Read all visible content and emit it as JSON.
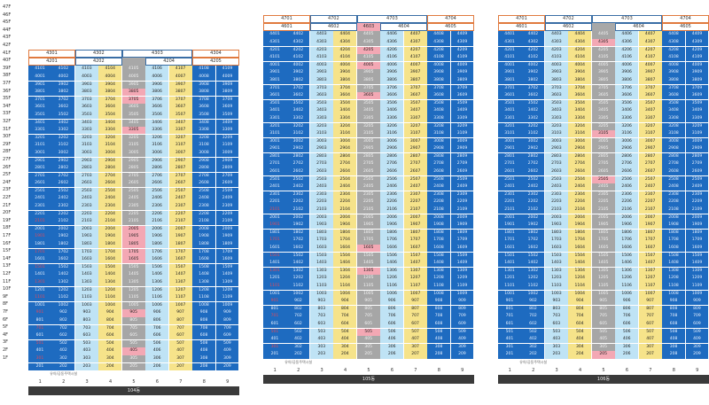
{
  "floors": [
    "47F",
    "46F",
    "45F",
    "44F",
    "43F",
    "42F",
    "41F",
    "40F",
    "39F",
    "38F",
    "37F",
    "36F",
    "35F",
    "34F",
    "33F",
    "32F",
    "31F",
    "30F",
    "29F",
    "28F",
    "27F",
    "26F",
    "25F",
    "24F",
    "23F",
    "22F",
    "21F",
    "20F",
    "19F",
    "18F",
    "17F",
    "16F",
    "15F",
    "14F",
    "13F",
    "12F",
    "11F",
    "10F",
    "9F",
    "8F",
    "7F",
    "6F",
    "5F",
    "4F",
    "3F",
    "2F",
    "1F"
  ],
  "colors": {
    "blue": "#1e6bc0",
    "light": "#bfe3f5",
    "yellow": "#f6e38a",
    "grey": "#a6a6a6",
    "pink": "#f3a8b4",
    "dark": "#0c4f9e",
    "tab_orange": "#e07a3f",
    "tab_blue": "#3a6ea5",
    "footer": "#3a3a3a"
  },
  "charts": [
    {
      "top_floor": 43,
      "top_tabs": [
        {
          "label": "4301",
          "style": "orange",
          "span": 2
        },
        {
          "label": "4302",
          "style": "blue",
          "span": 2
        },
        {
          "label": "4303",
          "style": "blue",
          "span": 3
        },
        {
          "label": "4304",
          "style": "orange",
          "span": 2
        }
      ],
      "second_tabs": [
        {
          "label": "4201",
          "style": "orange",
          "span": 2
        },
        {
          "label": "4202",
          "style": "blue",
          "span": 2
        },
        {
          "label": "",
          "style": "grey",
          "span": 1
        },
        {
          "label": "4204",
          "style": "blue",
          "span": 2
        },
        {
          "label": "4205",
          "style": "orange",
          "span": 2
        }
      ],
      "pattern": [
        "blue",
        "blue",
        "light",
        "yellow",
        "grey",
        "light",
        "yellow",
        "blue",
        "blue"
      ],
      "pink": [
        "3805",
        "3705",
        "3305",
        "2005",
        "1905",
        "1805",
        "1705",
        "1605",
        "905",
        "405"
      ],
      "bottom_label": "유아/공동주택시설",
      "cols": [
        "1",
        "2",
        "3",
        "4",
        "5",
        "6",
        "7",
        "8",
        "9"
      ],
      "footer": "104동"
    },
    {
      "top_floor": 46,
      "top_tabs": [
        {
          "label": "4701",
          "style": "orange",
          "span": 2
        },
        {
          "label": "4702",
          "style": "blue",
          "span": 2
        },
        {
          "label": "4703",
          "style": "blue",
          "span": 3
        },
        {
          "label": "4704",
          "style": "orange",
          "span": 2
        }
      ],
      "second_tabs": [
        {
          "label": "4601",
          "style": "orange",
          "span": 2
        },
        {
          "label": "4602",
          "style": "blue",
          "span": 2
        },
        {
          "label": "4603",
          "style": "pinktab",
          "span": 1
        },
        {
          "label": "4604",
          "style": "blue",
          "span": 2
        },
        {
          "label": "4605",
          "style": "orange",
          "span": 2
        }
      ],
      "pattern": [
        "blue",
        "blue",
        "light",
        "yellow",
        "grey",
        "light",
        "yellow",
        "blue",
        "blue"
      ],
      "pink": [
        "4205",
        "4005",
        "3605",
        "1605",
        "1305",
        "505"
      ],
      "bottom_label": "유아/공동주택시설",
      "cols": [
        "1",
        "2",
        "3",
        "4",
        "5",
        "6",
        "7",
        "8",
        "9"
      ],
      "footer": "105동"
    },
    {
      "top_floor": 46,
      "top_tabs": [
        {
          "label": "4701",
          "style": "orange",
          "span": 2
        },
        {
          "label": "4702",
          "style": "blue",
          "span": 2
        },
        {
          "label": "4703",
          "style": "blue",
          "span": 3
        },
        {
          "label": "4704",
          "style": "orange",
          "span": 2
        }
      ],
      "second_tabs": [
        {
          "label": "4601",
          "style": "orange",
          "span": 2
        },
        {
          "label": "4602",
          "style": "blue",
          "span": 2
        },
        {
          "label": "",
          "style": "grey",
          "span": 1
        },
        {
          "label": "4604",
          "style": "blue",
          "span": 2
        },
        {
          "label": "4605",
          "style": "orange",
          "span": 2
        }
      ],
      "pattern": [
        "blue",
        "blue",
        "light",
        "yellow",
        "grey",
        "light",
        "yellow",
        "blue",
        "blue"
      ],
      "pink": [
        "4305",
        "3105",
        "2505",
        "205"
      ],
      "bottom_label": "유아/공동주택시설",
      "cols": [
        "1",
        "2",
        "3",
        "4",
        "5",
        "6",
        "7",
        "8",
        "9"
      ],
      "footer": "106동"
    }
  ]
}
